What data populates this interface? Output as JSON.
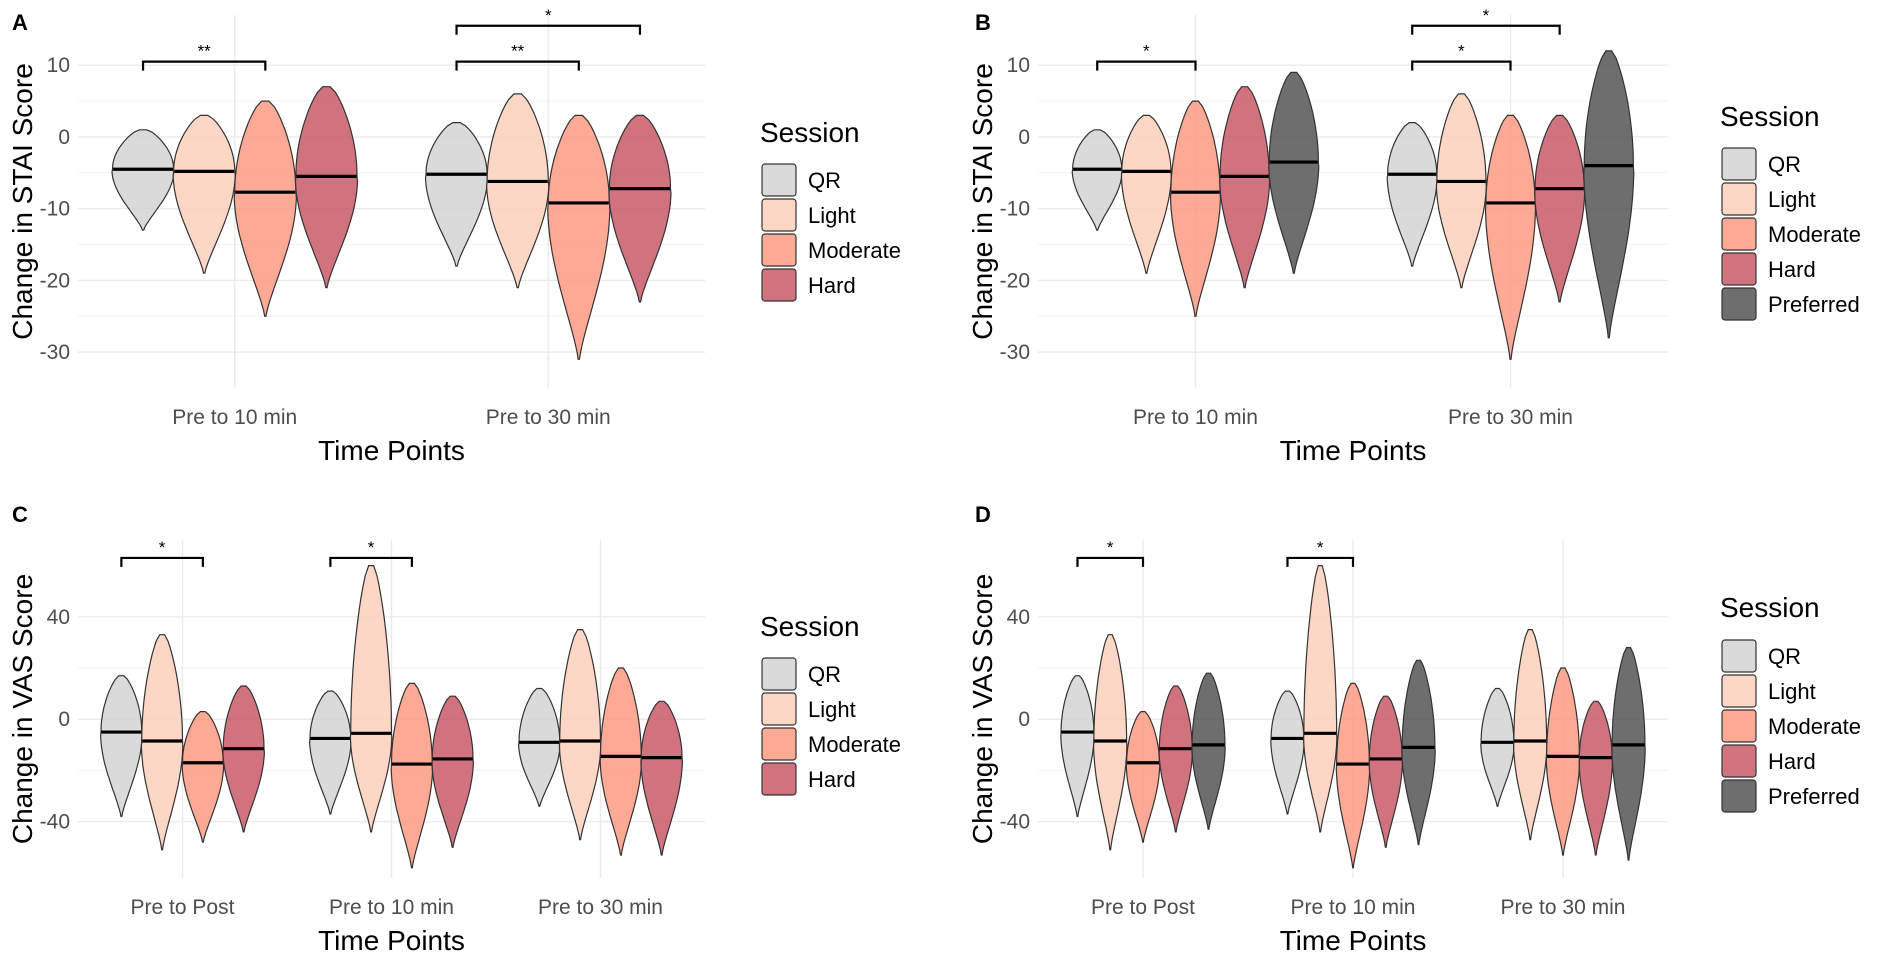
{
  "figure": {
    "colors": {
      "QR": "#d3d3d3",
      "Light": "#fdd0bb",
      "Moderate": "#fb9a84",
      "Hard": "#c85b68",
      "Preferred": "#555555"
    }
  },
  "chart_data": [
    {
      "panel": "A",
      "type": "violin",
      "ylabel": "Change in STAI Score",
      "xlabel": "Time Points",
      "ylim": [
        -35,
        17
      ],
      "yticks": [
        10,
        0,
        -10,
        -20,
        -30
      ],
      "categories": [
        "Pre to 10 min",
        "Pre to 30 min"
      ],
      "legend_title": "Session",
      "legend_items": [
        "QR",
        "Light",
        "Moderate",
        "Hard"
      ],
      "series": [
        {
          "name": "QR",
          "min": [
            -13,
            -18
          ],
          "max": [
            1,
            2
          ],
          "median": [
            -4.5,
            -5.2
          ]
        },
        {
          "name": "Light",
          "min": [
            -19,
            -21
          ],
          "max": [
            3,
            6
          ],
          "median": [
            -4.8,
            -6.2
          ]
        },
        {
          "name": "Moderate",
          "min": [
            -25,
            -31
          ],
          "max": [
            5,
            3
          ],
          "median": [
            -7.7,
            -9.2
          ]
        },
        {
          "name": "Hard",
          "min": [
            -21,
            -23
          ],
          "max": [
            7,
            3
          ],
          "median": [
            -5.5,
            -7.2
          ]
        }
      ],
      "significance": [
        {
          "category": 0,
          "from": "QR",
          "to": "Moderate",
          "label": "**",
          "y": 10.5
        },
        {
          "category": 1,
          "from": "QR",
          "to": "Moderate",
          "label": "**",
          "y": 10.5
        },
        {
          "category": 1,
          "from": "QR",
          "to": "Hard",
          "label": "*",
          "y": 15.5
        }
      ]
    },
    {
      "panel": "B",
      "type": "violin",
      "ylabel": "Change in STAI Score",
      "xlabel": "Time Points",
      "ylim": [
        -35,
        17
      ],
      "yticks": [
        10,
        0,
        -10,
        -20,
        -30
      ],
      "categories": [
        "Pre to 10 min",
        "Pre to 30 min"
      ],
      "legend_title": "Session",
      "legend_items": [
        "QR",
        "Light",
        "Moderate",
        "Hard",
        "Preferred"
      ],
      "series": [
        {
          "name": "QR",
          "min": [
            -13,
            -18
          ],
          "max": [
            1,
            2
          ],
          "median": [
            -4.5,
            -5.2
          ]
        },
        {
          "name": "Light",
          "min": [
            -19,
            -21
          ],
          "max": [
            3,
            6
          ],
          "median": [
            -4.8,
            -6.2
          ]
        },
        {
          "name": "Moderate",
          "min": [
            -25,
            -31
          ],
          "max": [
            5,
            3
          ],
          "median": [
            -7.7,
            -9.2
          ]
        },
        {
          "name": "Hard",
          "min": [
            -21,
            -23
          ],
          "max": [
            7,
            3
          ],
          "median": [
            -5.5,
            -7.2
          ]
        },
        {
          "name": "Preferred",
          "min": [
            -19,
            -28
          ],
          "max": [
            9,
            12
          ],
          "median": [
            -3.5,
            -4.0
          ]
        }
      ],
      "significance": [
        {
          "category": 0,
          "from": "QR",
          "to": "Moderate",
          "label": "*",
          "y": 10.5
        },
        {
          "category": 1,
          "from": "QR",
          "to": "Moderate",
          "label": "*",
          "y": 10.5
        },
        {
          "category": 1,
          "from": "QR",
          "to": "Hard",
          "label": "*",
          "y": 15.5
        }
      ]
    },
    {
      "panel": "C",
      "type": "violin",
      "ylabel": "Change in VAS Score",
      "xlabel": "Time Points",
      "ylim": [
        -62,
        70
      ],
      "yticks": [
        40,
        0,
        -40
      ],
      "categories": [
        "Pre to Post",
        "Pre to 10 min",
        "Pre to 30 min"
      ],
      "legend_title": "Session",
      "legend_items": [
        "QR",
        "Light",
        "Moderate",
        "Hard"
      ],
      "series": [
        {
          "name": "QR",
          "min": [
            -38,
            -37,
            -34
          ],
          "max": [
            17,
            11,
            12
          ],
          "median": [
            -5,
            -7.5,
            -9
          ]
        },
        {
          "name": "Light",
          "min": [
            -51,
            -44,
            -47
          ],
          "max": [
            33,
            60,
            35
          ],
          "median": [
            -8.5,
            -5.5,
            -8.5
          ]
        },
        {
          "name": "Moderate",
          "min": [
            -48,
            -58,
            -53
          ],
          "max": [
            3,
            14,
            20
          ],
          "median": [
            -17,
            -17.5,
            -14.5
          ]
        },
        {
          "name": "Hard",
          "min": [
            -44,
            -50,
            -53
          ],
          "max": [
            13,
            9,
            7
          ],
          "median": [
            -11.5,
            -15.5,
            -15
          ]
        }
      ],
      "significance": [
        {
          "category": 0,
          "from": "QR",
          "to": "Moderate",
          "label": "*",
          "y": 63
        },
        {
          "category": 1,
          "from": "QR",
          "to": "Moderate",
          "label": "*",
          "y": 63
        }
      ]
    },
    {
      "panel": "D",
      "type": "violin",
      "ylabel": "Change in VAS Score",
      "xlabel": "Time Points",
      "ylim": [
        -62,
        70
      ],
      "yticks": [
        40,
        0,
        -40
      ],
      "categories": [
        "Pre to Post",
        "Pre to 10 min",
        "Pre to 30 min"
      ],
      "legend_title": "Session",
      "legend_items": [
        "QR",
        "Light",
        "Moderate",
        "Hard",
        "Preferred"
      ],
      "series": [
        {
          "name": "QR",
          "min": [
            -38,
            -37,
            -34
          ],
          "max": [
            17,
            11,
            12
          ],
          "median": [
            -5,
            -7.5,
            -9
          ]
        },
        {
          "name": "Light",
          "min": [
            -51,
            -44,
            -47
          ],
          "max": [
            33,
            60,
            35
          ],
          "median": [
            -8.5,
            -5.5,
            -8.5
          ]
        },
        {
          "name": "Moderate",
          "min": [
            -48,
            -58,
            -53
          ],
          "max": [
            3,
            14,
            20
          ],
          "median": [
            -17,
            -17.5,
            -14.5
          ]
        },
        {
          "name": "Hard",
          "min": [
            -44,
            -50,
            -53
          ],
          "max": [
            13,
            9,
            7
          ],
          "median": [
            -11.5,
            -15.5,
            -15
          ]
        },
        {
          "name": "Preferred",
          "min": [
            -43,
            -49,
            -55
          ],
          "max": [
            18,
            23,
            28
          ],
          "median": [
            -10,
            -11,
            -10
          ]
        }
      ],
      "significance": [
        {
          "category": 0,
          "from": "QR",
          "to": "Moderate",
          "label": "*",
          "y": 63
        },
        {
          "category": 1,
          "from": "QR",
          "to": "Moderate",
          "label": "*",
          "y": 63
        }
      ]
    }
  ]
}
